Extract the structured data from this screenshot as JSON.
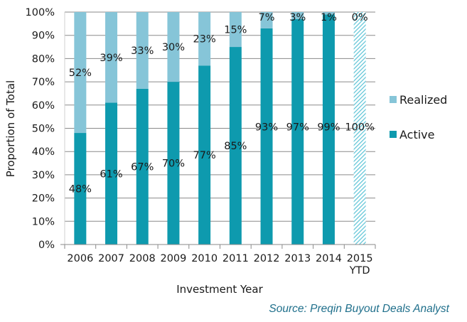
{
  "chart_data": {
    "type": "bar",
    "stacked": true,
    "title": "",
    "xlabel": "Investment Year",
    "ylabel": "Proportion of Total",
    "ylim": [
      0,
      100
    ],
    "yticks": [
      "0%",
      "10%",
      "20%",
      "30%",
      "40%",
      "50%",
      "60%",
      "70%",
      "80%",
      "90%",
      "100%"
    ],
    "grid": true,
    "categories": [
      "2006",
      "2007",
      "2008",
      "2009",
      "2010",
      "2011",
      "2012",
      "2013",
      "2014",
      "2015 YTD"
    ],
    "category_lines": [
      [
        "2006"
      ],
      [
        "2007"
      ],
      [
        "2008"
      ],
      [
        "2009"
      ],
      [
        "2010"
      ],
      [
        "2011"
      ],
      [
        "2012"
      ],
      [
        "2013"
      ],
      [
        "2014"
      ],
      [
        "2015",
        "YTD"
      ]
    ],
    "series": [
      {
        "name": "Active",
        "color": "#0e9aae",
        "values": [
          48,
          61,
          67,
          70,
          77,
          85,
          93,
          97,
          99,
          100
        ],
        "labels": [
          "48%",
          "61%",
          "67%",
          "70%",
          "77%",
          "85%",
          "93%",
          "97%",
          "99%",
          "100%"
        ]
      },
      {
        "name": "Realized",
        "color": "#86c5d8",
        "values": [
          52,
          39,
          33,
          30,
          23,
          15,
          7,
          3,
          1,
          0
        ],
        "labels": [
          "52%",
          "39%",
          "33%",
          "30%",
          "23%",
          "15%",
          "7%",
          "3%",
          "1%",
          "0%"
        ]
      }
    ],
    "hatched_category": "2015 YTD",
    "legend": {
      "placement": "right",
      "entries": [
        "Realized",
        "Active"
      ]
    },
    "source": "Source: Preqin Buyout Deals Analyst"
  }
}
